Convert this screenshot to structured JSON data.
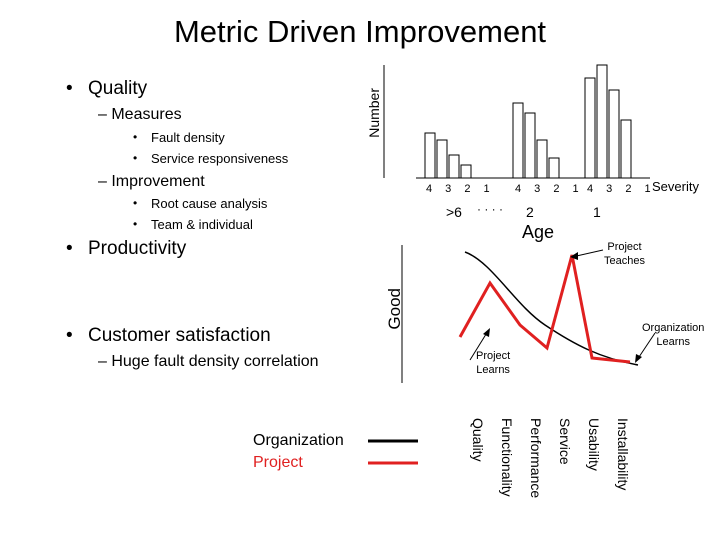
{
  "title": "Metric Driven Improvement",
  "bullets": {
    "quality": "Quality",
    "measures": "Measures",
    "fault_density": "Fault density",
    "service_responsiveness": "Service responsiveness",
    "improvement": "Improvement",
    "root_cause": "Root cause analysis",
    "team_individual": "Team & individual",
    "productivity": "Productivity",
    "customer_satisfaction": "Customer satisfaction",
    "huge_fault": "Huge fault density correlation"
  },
  "histogram": {
    "y_label": "Number",
    "x_label": "Age",
    "severity_label": "Severity",
    "ticks": "4 3 2 1",
    "age_groups": [
      ">6",
      "2",
      "1"
    ],
    "ellipsis": "· · · ·"
  },
  "good_chart": {
    "y_label": "Good",
    "annotations": {
      "project_teaches": "Project\nTeaches",
      "organization_learns": "Organization\nLearns",
      "project_learns": "Project\nLearns"
    },
    "categories": [
      "Quality",
      "Functionality",
      "Performance",
      "Service",
      "Usability",
      "Installability"
    ],
    "legend": {
      "organization": "Organization",
      "project": "Project"
    },
    "colors": {
      "organization": "#000000",
      "project": "#e02020"
    }
  }
}
